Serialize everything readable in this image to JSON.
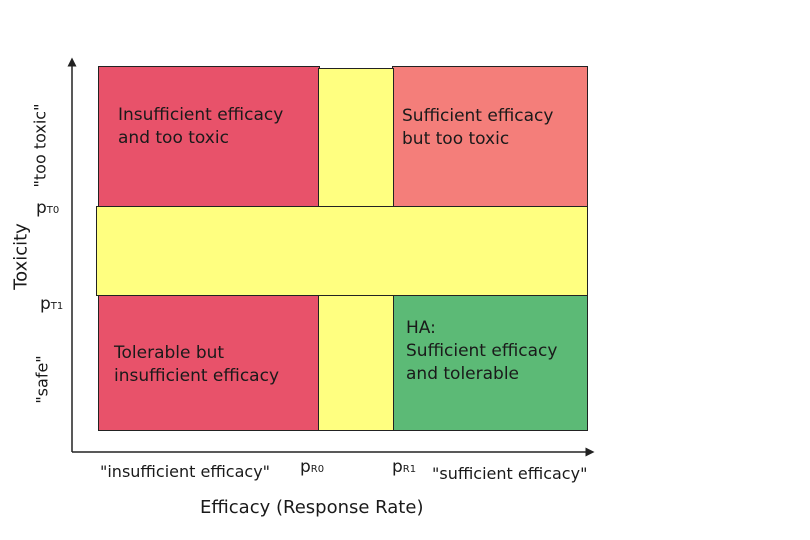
{
  "colors": {
    "red": "#e8526a",
    "salmon": "#f47e7a",
    "green": "#5cba76",
    "yellow": "#ffff80",
    "axis": "#222222"
  },
  "quadrants": {
    "top_left": "Insufficient efficacy\nand too toxic",
    "top_right": "Sufficient efficacy\nbut too toxic",
    "bottom_left": "Tolerable but\ninsufficient efficacy",
    "bottom_right": "HA:\nSufficient efficacy\nand tolerable"
  },
  "y_axis": {
    "title": "Toxicity",
    "top_label": "\"too toxic\"",
    "bottom_label": "\"safe\"",
    "pt0_main": "p",
    "pt0_sub": "T0",
    "pt1_main": "p",
    "pt1_sub": "T1"
  },
  "x_axis": {
    "title": "Efficacy (Response Rate)",
    "left_label": "\"insufficient efficacy\"",
    "right_label": "\"sufficient efficacy\"",
    "pr0_main": "p",
    "pr0_sub": "R0",
    "pr1_main": "p",
    "pr1_sub": "R1"
  }
}
